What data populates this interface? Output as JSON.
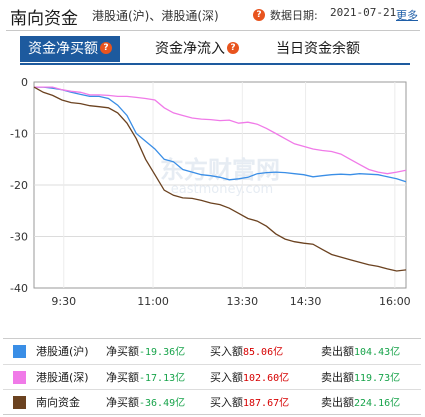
{
  "header": {
    "title": "南向资金",
    "subtitle": "港股通(沪)、港股通(深)",
    "help_glyph": "?",
    "date_label": "数据日期:",
    "date_value": "2021-07-21",
    "more_link": "更多"
  },
  "tabs": [
    {
      "label": "资金净买额",
      "active": true,
      "help": "?"
    },
    {
      "label": "资金净流入",
      "active": false,
      "help": "?"
    },
    {
      "label": "当日资金余额",
      "active": false
    }
  ],
  "chart_data": {
    "type": "line",
    "y_ticks": [
      "0",
      "-10",
      "-20",
      "-30",
      "-40"
    ],
    "ylim": [
      -40,
      0
    ],
    "x_ticks": [
      "9:30",
      "11:00",
      "13:30",
      "14:30",
      "16:00"
    ],
    "watermark": "东方财富网",
    "watermark_sub": "eastmoney.com",
    "series": [
      {
        "name": "港股通(沪)",
        "color": "#3a8ee6",
        "values": [
          -1,
          -1,
          -1.2,
          -1.5,
          -2,
          -2.4,
          -2.8,
          -2.8,
          -3.2,
          -4.5,
          -6.5,
          -10,
          -11.5,
          -13,
          -15,
          -15.5,
          -17,
          -17.5,
          -18,
          -18.2,
          -18.5,
          -19,
          -18.8,
          -18.5,
          -17.8,
          -17.6,
          -17.5,
          -17.6,
          -17.8,
          -18,
          -18.4,
          -18.2,
          -18,
          -17.9,
          -18,
          -17.8,
          -17.9,
          -18,
          -18.4,
          -18.8,
          -19.36
        ]
      },
      {
        "name": "港股通(深)",
        "color": "#f07ae8",
        "values": [
          -1,
          -1,
          -1,
          -1.5,
          -1.8,
          -2,
          -2.5,
          -2.5,
          -2.6,
          -2.8,
          -2.8,
          -3,
          -3.2,
          -3.5,
          -5,
          -6,
          -6.5,
          -7,
          -7.2,
          -7.3,
          -7.5,
          -7.4,
          -8,
          -7.8,
          -8.2,
          -9,
          -10,
          -11,
          -12,
          -12.5,
          -13,
          -13.3,
          -13.5,
          -14,
          -15,
          -16,
          -17,
          -17.5,
          -17.8,
          -17.5,
          -17.13
        ]
      },
      {
        "name": "南向资金",
        "color": "#6b4220",
        "values": [
          -1,
          -2,
          -2.6,
          -3.5,
          -4,
          -4.2,
          -4.6,
          -4.8,
          -5,
          -6,
          -8,
          -11,
          -15,
          -18,
          -21,
          -22,
          -22.5,
          -22.6,
          -23,
          -23.5,
          -23.8,
          -24.5,
          -25.5,
          -26.5,
          -27,
          -28,
          -29.5,
          -30.5,
          -31,
          -31.3,
          -31.5,
          -32.5,
          -33.5,
          -34,
          -34.5,
          -35,
          -35.5,
          -35.8,
          -36.3,
          -36.7,
          -36.49
        ]
      }
    ]
  },
  "legend_rows": [
    {
      "name": "港股通(沪)",
      "color": "#3a8ee6",
      "net_label": "净买额",
      "net_value": "-19.36亿",
      "buy_label": "买入额",
      "buy_value": "85.06亿",
      "sell_label": "卖出额",
      "sell_value": "104.43亿"
    },
    {
      "name": "港股通(深)",
      "color": "#f07ae8",
      "net_label": "净买额",
      "net_value": "-17.13亿",
      "buy_label": "买入额",
      "buy_value": "102.60亿",
      "sell_label": "卖出额",
      "sell_value": "119.73亿"
    },
    {
      "name": "南向资金",
      "color": "#6b4220",
      "net_label": "净买额",
      "net_value": "-36.49亿",
      "buy_label": "买入额",
      "buy_value": "187.67亿",
      "sell_label": "卖出额",
      "sell_value": "224.16亿"
    }
  ]
}
